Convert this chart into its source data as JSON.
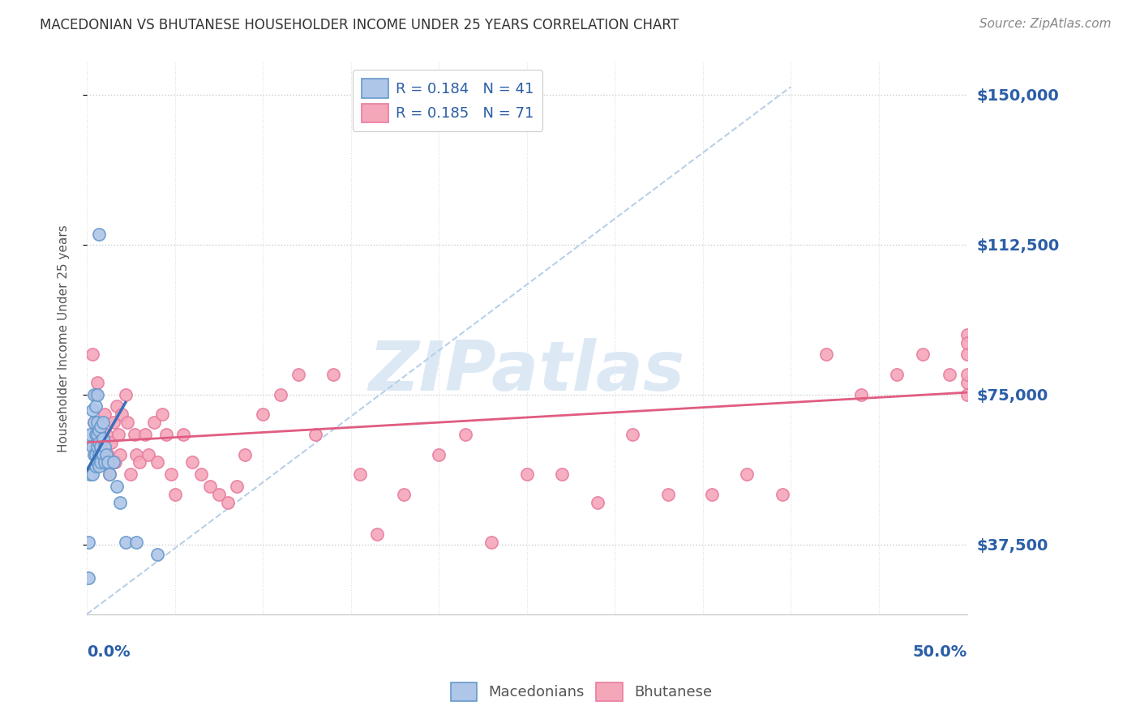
{
  "title": "MACEDONIAN VS BHUTANESE HOUSEHOLDER INCOME UNDER 25 YEARS CORRELATION CHART",
  "source": "Source: ZipAtlas.com",
  "ylabel": "Householder Income Under 25 years",
  "yticks": [
    37500,
    75000,
    112500,
    150000
  ],
  "ytick_labels": [
    "$37,500",
    "$75,000",
    "$112,500",
    "$150,000"
  ],
  "xlim": [
    0.0,
    0.5
  ],
  "ylim": [
    20000,
    158000
  ],
  "legend_macedonian": "R = 0.184   N = 41",
  "legend_bhutanese": "R = 0.185   N = 71",
  "macedonian_color": "#aec6e8",
  "bhutanese_color": "#f4a7b9",
  "macedonian_edge": "#6699cc",
  "bhutanese_edge": "#e87da0",
  "ref_line_color": "#b8d0e8",
  "mac_trend_color": "#3a6fba",
  "bhu_trend_color": "#e05c80",
  "watermark_color": "#dce9f5",
  "mac_x": [
    0.001,
    0.001,
    0.002,
    0.002,
    0.003,
    0.003,
    0.003,
    0.004,
    0.004,
    0.004,
    0.005,
    0.005,
    0.005,
    0.005,
    0.006,
    0.006,
    0.006,
    0.006,
    0.006,
    0.007,
    0.007,
    0.007,
    0.007,
    0.007,
    0.008,
    0.008,
    0.008,
    0.009,
    0.009,
    0.009,
    0.01,
    0.01,
    0.011,
    0.012,
    0.013,
    0.015,
    0.017,
    0.019,
    0.022,
    0.028,
    0.04
  ],
  "mac_y": [
    29000,
    38000,
    55000,
    65000,
    55000,
    62000,
    71000,
    60000,
    68000,
    75000,
    57000,
    60000,
    65000,
    72000,
    58000,
    62000,
    65000,
    68000,
    75000,
    57000,
    60000,
    63000,
    66000,
    115000,
    58000,
    62000,
    67000,
    60000,
    64000,
    68000,
    58000,
    62000,
    60000,
    58000,
    55000,
    58000,
    52000,
    48000,
    38000,
    38000,
    35000
  ],
  "bhu_x": [
    0.003,
    0.004,
    0.005,
    0.005,
    0.006,
    0.007,
    0.008,
    0.009,
    0.01,
    0.011,
    0.012,
    0.013,
    0.014,
    0.015,
    0.016,
    0.017,
    0.018,
    0.019,
    0.02,
    0.022,
    0.023,
    0.025,
    0.027,
    0.028,
    0.03,
    0.033,
    0.035,
    0.038,
    0.04,
    0.043,
    0.045,
    0.048,
    0.05,
    0.055,
    0.06,
    0.065,
    0.07,
    0.075,
    0.08,
    0.085,
    0.09,
    0.1,
    0.11,
    0.12,
    0.13,
    0.14,
    0.155,
    0.165,
    0.18,
    0.2,
    0.215,
    0.23,
    0.25,
    0.27,
    0.29,
    0.31,
    0.33,
    0.355,
    0.375,
    0.395,
    0.42,
    0.44,
    0.46,
    0.475,
    0.49,
    0.5,
    0.5,
    0.5,
    0.5,
    0.5,
    0.5
  ],
  "bhu_y": [
    85000,
    68000,
    75000,
    62000,
    78000,
    65000,
    58000,
    62000,
    70000,
    65000,
    60000,
    55000,
    63000,
    68000,
    58000,
    72000,
    65000,
    60000,
    70000,
    75000,
    68000,
    55000,
    65000,
    60000,
    58000,
    65000,
    60000,
    68000,
    58000,
    70000,
    65000,
    55000,
    50000,
    65000,
    58000,
    55000,
    52000,
    50000,
    48000,
    52000,
    60000,
    70000,
    75000,
    80000,
    65000,
    80000,
    55000,
    40000,
    50000,
    60000,
    65000,
    38000,
    55000,
    55000,
    48000,
    65000,
    50000,
    50000,
    55000,
    50000,
    85000,
    75000,
    80000,
    85000,
    80000,
    90000,
    85000,
    75000,
    88000,
    78000,
    80000
  ],
  "mac_trend_x0": 0.0,
  "mac_trend_y0": 56000,
  "mac_trend_x1": 0.022,
  "mac_trend_y1": 73000,
  "bhu_trend_x0": 0.0,
  "bhu_trend_y0": 63000,
  "bhu_trend_x1": 0.5,
  "bhu_trend_y1": 75500,
  "ref_line_x0": 0.0,
  "ref_line_y0": 20000,
  "ref_line_x1": 0.4,
  "ref_line_y1": 152000
}
